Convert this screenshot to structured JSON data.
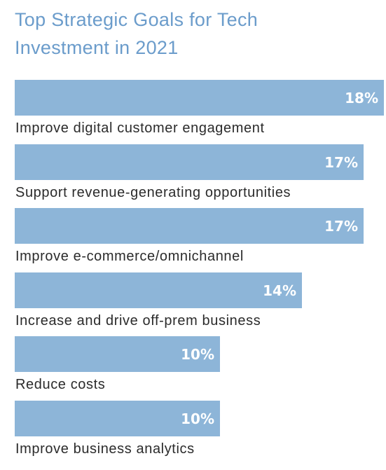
{
  "colors": {
    "title": "#6b9ccb",
    "bar": "#8db5d8",
    "text": "#2b2b2b"
  },
  "header": {
    "title_line1": "Top Strategic Goals for Tech",
    "title_line2": "Investment in 2021"
  },
  "chart_data": {
    "type": "bar",
    "orientation": "horizontal",
    "title": "Top Strategic Goals for Tech Investment in 2021",
    "categories": [
      "Improve digital customer engagement",
      "Support revenue-generating opportunities",
      "Improve e-commerce/omnichannel",
      "Increase and drive off-prem business",
      "Reduce costs",
      "Improve business analytics"
    ],
    "values": [
      18,
      17,
      17,
      14,
      10,
      10
    ],
    "value_labels": [
      "18%",
      "17%",
      "17%",
      "14%",
      "10%",
      "10%"
    ],
    "unit": "%",
    "grid": false,
    "legend": "none"
  }
}
